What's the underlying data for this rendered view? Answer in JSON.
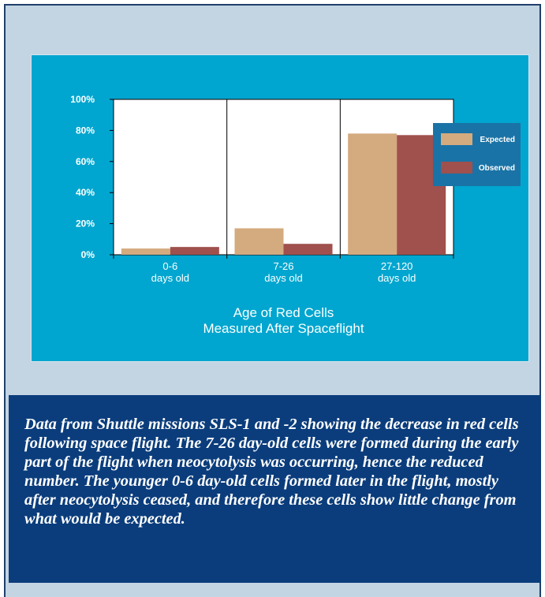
{
  "chart_data": {
    "type": "bar",
    "title": "",
    "xlabel": [
      "Age of  Red Cells",
      "Measured After Spaceflight"
    ],
    "ylabel": "",
    "ylim": [
      0,
      100
    ],
    "yticks": [
      "0%",
      "20%",
      "40%",
      "60%",
      "80%",
      "100%"
    ],
    "categories": [
      [
        "0-6",
        "days old"
      ],
      [
        "7-26",
        "days old"
      ],
      [
        "27-120",
        "days old"
      ]
    ],
    "series": [
      {
        "name": "Expected",
        "color": "#d4aa7f",
        "values": [
          4,
          17,
          78
        ]
      },
      {
        "name": "Observed",
        "color": "#a0504d",
        "values": [
          5,
          7,
          77
        ]
      }
    ],
    "grid": "vertical-category-lines",
    "legend": "right",
    "colors": {
      "panel": "#00a6cf",
      "plot": "#ffffff",
      "legend_bg": "#1a73a6"
    }
  },
  "caption": "Data from Shuttle missions SLS-1 and -2 showing the decrease in red cells following space flight.  The 7-26 day-old cells were formed during the early part of the flight when neocytolysis was occurring, hence the reduced number.  The younger 0-6 day-old cells formed later in the flight, mostly after neocytolysis ceased, and therefore these cells show little change from what would be expected."
}
